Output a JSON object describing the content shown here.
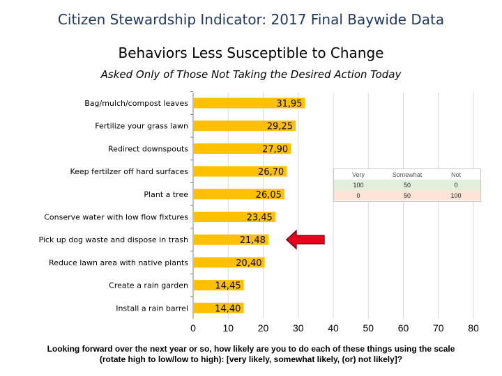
{
  "header": {
    "title": "Citizen Stewardship Indicator: 2017 Final Baywide Data",
    "subtitle": "Behaviors Less Susceptible to Change",
    "subsubtitle": "Asked Only of Those Not Taking the Desired Action Today"
  },
  "footer": {
    "line1": "Looking forward over the next year or so, how likely are you to do each of these things using the scale",
    "line2": "(rotate high to low/low to high): [very likely, somewhat likely, (or) not likely]?"
  },
  "legend_table": {
    "headers": [
      "Very",
      "Somewhat",
      "Not"
    ],
    "row1": [
      "100",
      "50",
      "0"
    ],
    "row2": [
      "0",
      "50",
      "100"
    ],
    "row1_color": "#e2efda",
    "row2_color": "#fce4d6"
  },
  "chart_data": {
    "type": "bar",
    "orientation": "horizontal",
    "categories": [
      "Bag/mulch/compost leaves",
      "Fertilize your grass lawn",
      "Redirect downspouts",
      "Keep fertilzer off hard surfaces",
      "Plant a tree",
      "Conserve water with low flow fixtures",
      "Pick up dog waste and dispose in trash",
      "Reduce lawn area with native plants",
      "Create a rain garden",
      "Install a rain barrel"
    ],
    "values": [
      31.95,
      29.25,
      27.9,
      26.7,
      26.05,
      23.45,
      21.48,
      20.4,
      14.45,
      14.4
    ],
    "data_labels": [
      "31,95",
      "29,25",
      "27,90",
      "26,70",
      "26,05",
      "23,45",
      "21,48",
      "20,40",
      "14,45",
      "14,40"
    ],
    "xlim": [
      0,
      80
    ],
    "x_ticks": [
      "0",
      "10",
      "20",
      "30",
      "40",
      "50",
      "60",
      "70",
      "80"
    ],
    "bar_color": "#ffc000",
    "grid": true,
    "gridline_color": "#d9d9d9",
    "arrow": {
      "target_category": "Pick up dog waste and dispose in trash",
      "color": "#e8001c",
      "direction": "left"
    }
  }
}
